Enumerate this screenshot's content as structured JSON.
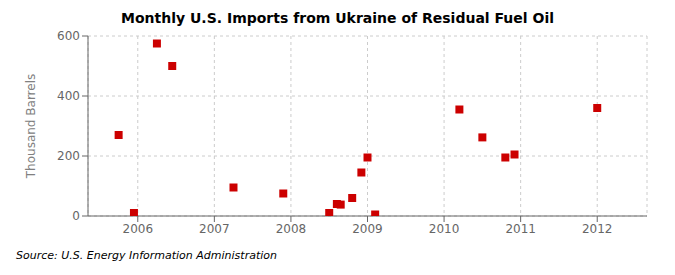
{
  "chart_data": {
    "type": "scatter",
    "title": "Monthly U.S. Imports from Ukraine of Residual Fuel Oil",
    "ylabel": "Thousand Barrels",
    "annotations": [
      "Source: U.S. Energy Information Administration"
    ],
    "x": [
      2005.75,
      2005.95,
      2006.25,
      2006.45,
      2007.25,
      2007.9,
      2008.5,
      2008.6,
      2008.65,
      2008.8,
      2008.92,
      2009.0,
      2009.1,
      2010.2,
      2010.5,
      2010.8,
      2010.92,
      2012.0
    ],
    "values": [
      270,
      10,
      575,
      500,
      95,
      75,
      10,
      40,
      38,
      60,
      145,
      195,
      5,
      355,
      262,
      195,
      205,
      360
    ],
    "color": "#CC0000",
    "marker": "square",
    "xlim": [
      2005.35,
      2012.65
    ],
    "ylim": [
      0,
      600
    ],
    "xticks": [
      2006,
      2007,
      2008,
      2009,
      2010,
      2011,
      2012
    ],
    "yticks": [
      0,
      200,
      400,
      600
    ],
    "grid": true
  }
}
